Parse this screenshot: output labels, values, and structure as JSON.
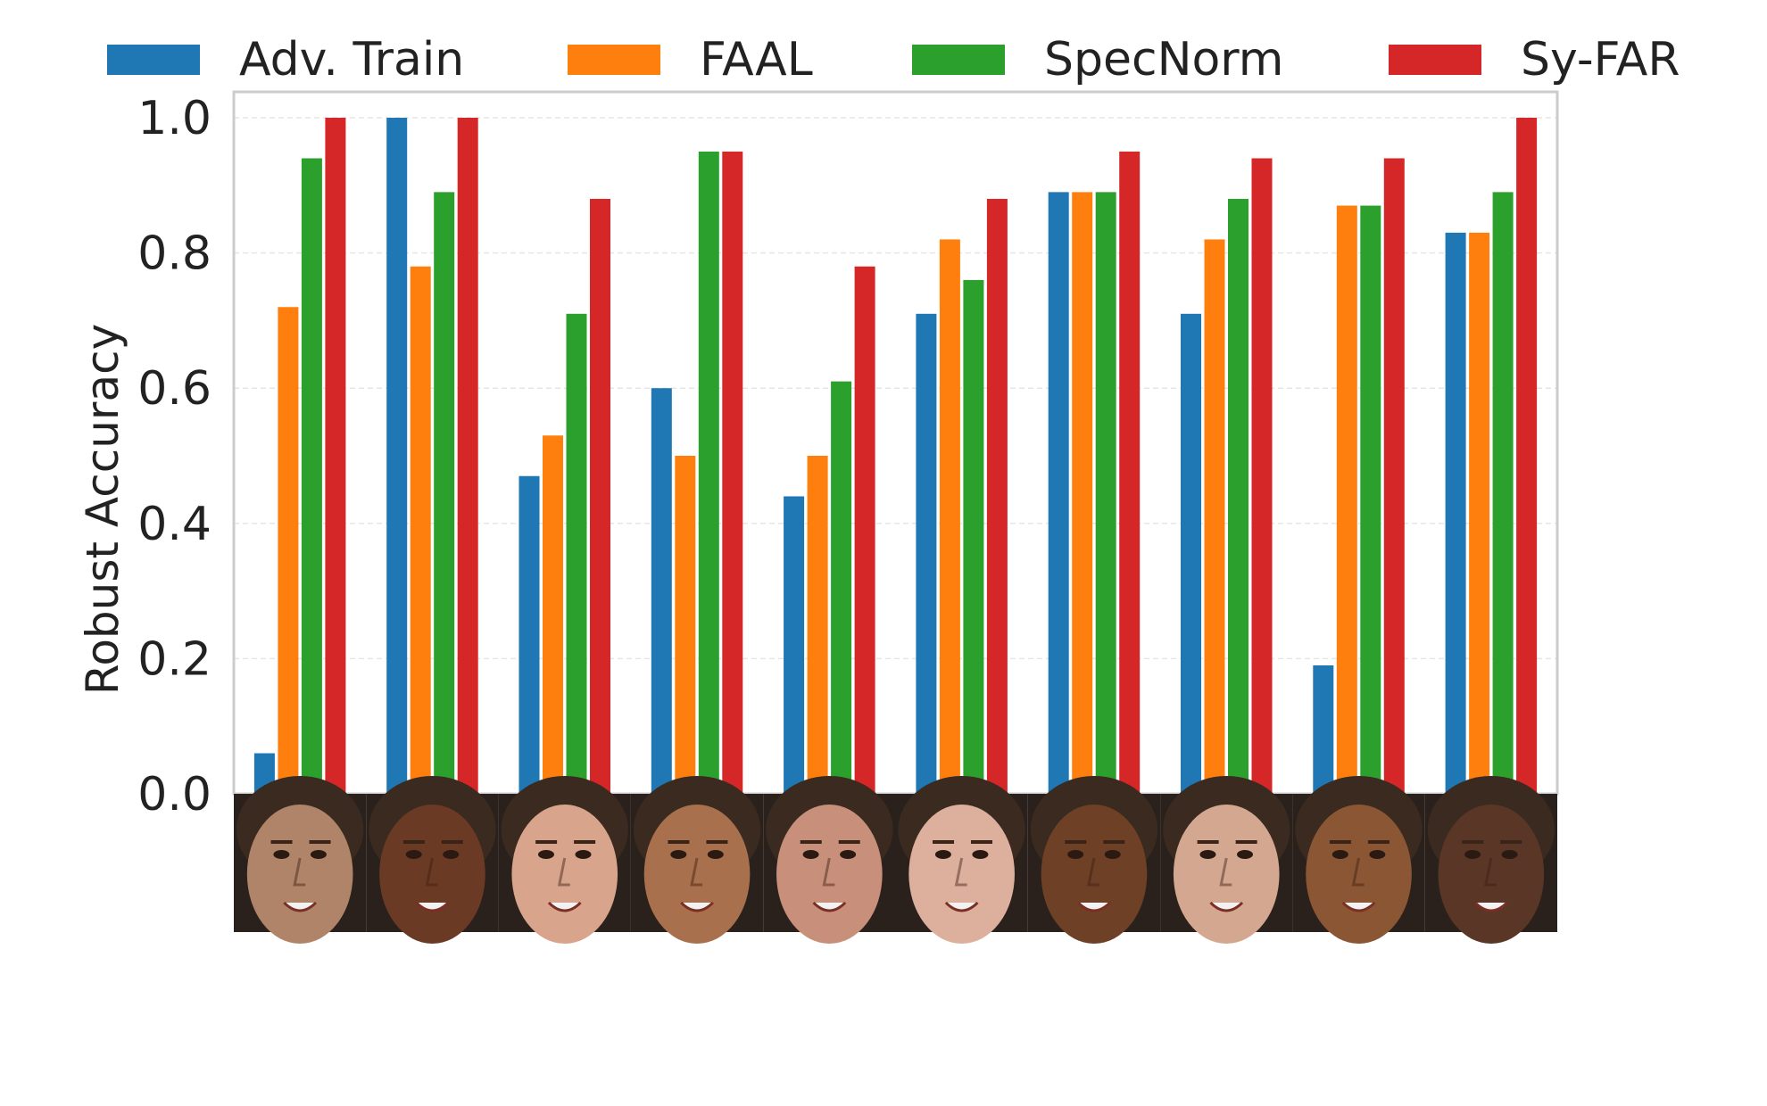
{
  "chart_data": {
    "type": "bar",
    "title": "",
    "xlabel": "",
    "ylabel": "Robust Accuracy",
    "ylim": [
      0,
      1.05
    ],
    "yticks": [
      "0.0",
      "0.2",
      "0.4",
      "0.6",
      "0.8",
      "1.0"
    ],
    "ytick_values": [
      0,
      0.2,
      0.4,
      0.6,
      0.8,
      1.0
    ],
    "categories": [
      "Face 1",
      "Face 2",
      "Face 3",
      "Face 4",
      "Face 5",
      "Face 6",
      "Face 7",
      "Face 8",
      "Face 9",
      "Face 10"
    ],
    "category_display": "face thumbnail images (no text labels)",
    "legend_position": "top",
    "grid": true,
    "series": [
      {
        "name": "Adv. Train",
        "color": "#1f77b4",
        "values": [
          0.06,
          1.0,
          0.47,
          0.6,
          0.44,
          0.71,
          0.89,
          0.71,
          0.19,
          0.83
        ]
      },
      {
        "name": "FAAL",
        "color": "#ff7f0e",
        "values": [
          0.72,
          0.78,
          0.53,
          0.5,
          0.5,
          0.82,
          0.89,
          0.82,
          0.87,
          0.83
        ]
      },
      {
        "name": "SpecNorm",
        "color": "#2ca02c",
        "values": [
          0.94,
          0.89,
          0.71,
          0.95,
          0.61,
          0.76,
          0.89,
          0.88,
          0.87,
          0.89
        ]
      },
      {
        "name": "Sy-FAR",
        "color": "#d62728",
        "values": [
          1.0,
          1.0,
          0.88,
          0.95,
          0.78,
          0.88,
          0.95,
          0.94,
          0.94,
          1.0
        ]
      }
    ],
    "face_tones": [
      "#b08468",
      "#6a3a24",
      "#d8a48c",
      "#a8704c",
      "#c8907a",
      "#dcb09c",
      "#6e4026",
      "#d4a890",
      "#8a5634",
      "#5a3626"
    ]
  }
}
